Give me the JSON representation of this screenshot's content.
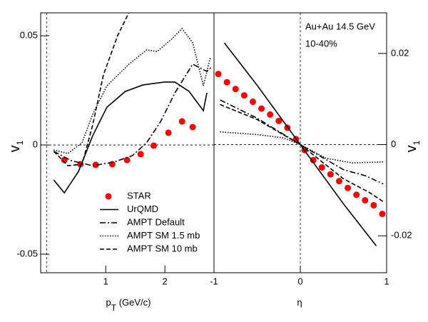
{
  "chart_data": [
    {
      "type": "line",
      "x_label": [
        "p",
        "T",
        " (GeV/c)"
      ],
      "y_label": [
        "v",
        "1"
      ],
      "xlim": [
        -0.1,
        2.83
      ],
      "xticks": [
        1,
        2
      ],
      "ylim": [
        -0.0585,
        0.0605
      ],
      "yticks": [
        0.05,
        0,
        -0.05
      ],
      "legend": "lower left",
      "series": [
        {
          "name": "STAR",
          "color": "#ff0000",
          "style": "marker",
          "x": [
            0.3,
            0.57,
            0.83,
            1.11,
            1.36,
            1.59,
            1.81,
            2.06,
            2.29,
            2.47
          ],
          "values": [
            -0.0069,
            -0.0088,
            -0.0091,
            -0.0088,
            -0.0069,
            -0.0042,
            -0.0003,
            0.0056,
            0.0108,
            0.0082
          ]
        },
        {
          "name": "UrQMD",
          "color": "#000000",
          "style": "solid",
          "x": [
            0.12,
            0.3,
            0.54,
            0.78,
            1.02,
            1.33,
            1.63,
            1.99,
            2.17,
            2.41,
            2.65,
            2.71
          ],
          "values": [
            -0.016,
            -0.0219,
            -0.0121,
            0.0043,
            0.0173,
            0.0245,
            0.0275,
            0.0288,
            0.0288,
            0.0245,
            0.0157,
            0.0239
          ]
        },
        {
          "name": "AMPT Default",
          "color": "#000000",
          "style": "dashdot",
          "x": [
            0.12,
            0.42,
            0.78,
            1.14,
            1.45,
            1.69,
            1.93,
            2.17,
            2.47,
            2.71,
            2.8
          ],
          "values": [
            -0.0029,
            -0.0072,
            -0.0095,
            -0.0078,
            -0.0049,
            0.001,
            0.0108,
            0.0239,
            0.037,
            0.0337,
            0.036
          ]
        },
        {
          "name": "AMPT SM 1.5 mb",
          "color": "#000000",
          "style": "dotted",
          "x": [
            0.12,
            0.36,
            0.6,
            0.78,
            1.02,
            1.39,
            1.69,
            1.87,
            2.11,
            2.29,
            2.47,
            2.65,
            2.77
          ],
          "values": [
            -0.0023,
            -0.0039,
            0.001,
            0.0141,
            0.0271,
            0.0369,
            0.0435,
            0.0428,
            0.0484,
            0.0533,
            0.0468,
            0.0271,
            0.0402
          ]
        },
        {
          "name": "AMPT SM 10 mb",
          "color": "#000000",
          "style": "dashed",
          "x": [
            0.12,
            0.36,
            0.6,
            0.78,
            0.96,
            1.2,
            1.39
          ],
          "values": [
            -0.0029,
            -0.0095,
            -0.0088,
            0.0092,
            0.032,
            0.05,
            0.0605
          ]
        }
      ]
    },
    {
      "type": "line",
      "x_label": [
        "η"
      ],
      "y_label": [
        "v",
        "1"
      ],
      "annotations": [
        "Au+Au 14.5 GeV",
        "10-40%"
      ],
      "xlim": [
        -1,
        1
      ],
      "xticks": [
        -1,
        0,
        1
      ],
      "y2lim": [
        -0.0281,
        0.0289
      ],
      "y2ticks": [
        0.02,
        0,
        -0.02
      ],
      "series": [
        {
          "color": "#ff0000",
          "style": "marker",
          "axis": "y2",
          "x": [
            -0.95,
            -0.85,
            -0.75,
            -0.65,
            -0.55,
            -0.45,
            -0.35,
            -0.25,
            -0.15,
            -0.05,
            0.05,
            0.15,
            0.25,
            0.35,
            0.45,
            0.55,
            0.65,
            0.75,
            0.85,
            0.95
          ],
          "values": [
            0.0155,
            0.0137,
            0.0122,
            0.0108,
            0.0094,
            0.0079,
            0.0066,
            0.0052,
            0.0037,
            0.0012,
            -0.0012,
            -0.0034,
            -0.005,
            -0.0065,
            -0.008,
            -0.0095,
            -0.011,
            -0.0122,
            -0.0133,
            -0.0152
          ]
        },
        {
          "color": "#000000",
          "style": "solid",
          "axis": "y2",
          "x": [
            -0.88,
            -0.5,
            0,
            0.5,
            0.88
          ],
          "values": [
            0.0223,
            0.013,
            0,
            -0.013,
            -0.0222
          ]
        },
        {
          "color": "#000000",
          "style": "dashdot",
          "axis": "y2",
          "x": [
            -0.93,
            -0.5,
            0,
            0.5,
            0.75,
            0.96
          ],
          "values": [
            0.0098,
            0.0058,
            0,
            -0.0055,
            -0.0068,
            -0.0086
          ]
        },
        {
          "color": "#000000",
          "style": "dotted",
          "axis": "y2",
          "x": [
            -0.93,
            -0.5,
            -0.2,
            0,
            0.3,
            0.6,
            0.96
          ],
          "values": [
            0.0028,
            0.0022,
            0.0015,
            0,
            -0.003,
            -0.004,
            -0.0038
          ]
        },
        {
          "color": "#000000",
          "style": "dashed",
          "axis": "y2",
          "x": [
            -0.93,
            -0.5,
            0,
            0.5,
            0.8,
            0.96
          ],
          "values": [
            0.0088,
            0.0055,
            0,
            -0.0075,
            -0.0105,
            -0.0125
          ]
        }
      ]
    }
  ]
}
